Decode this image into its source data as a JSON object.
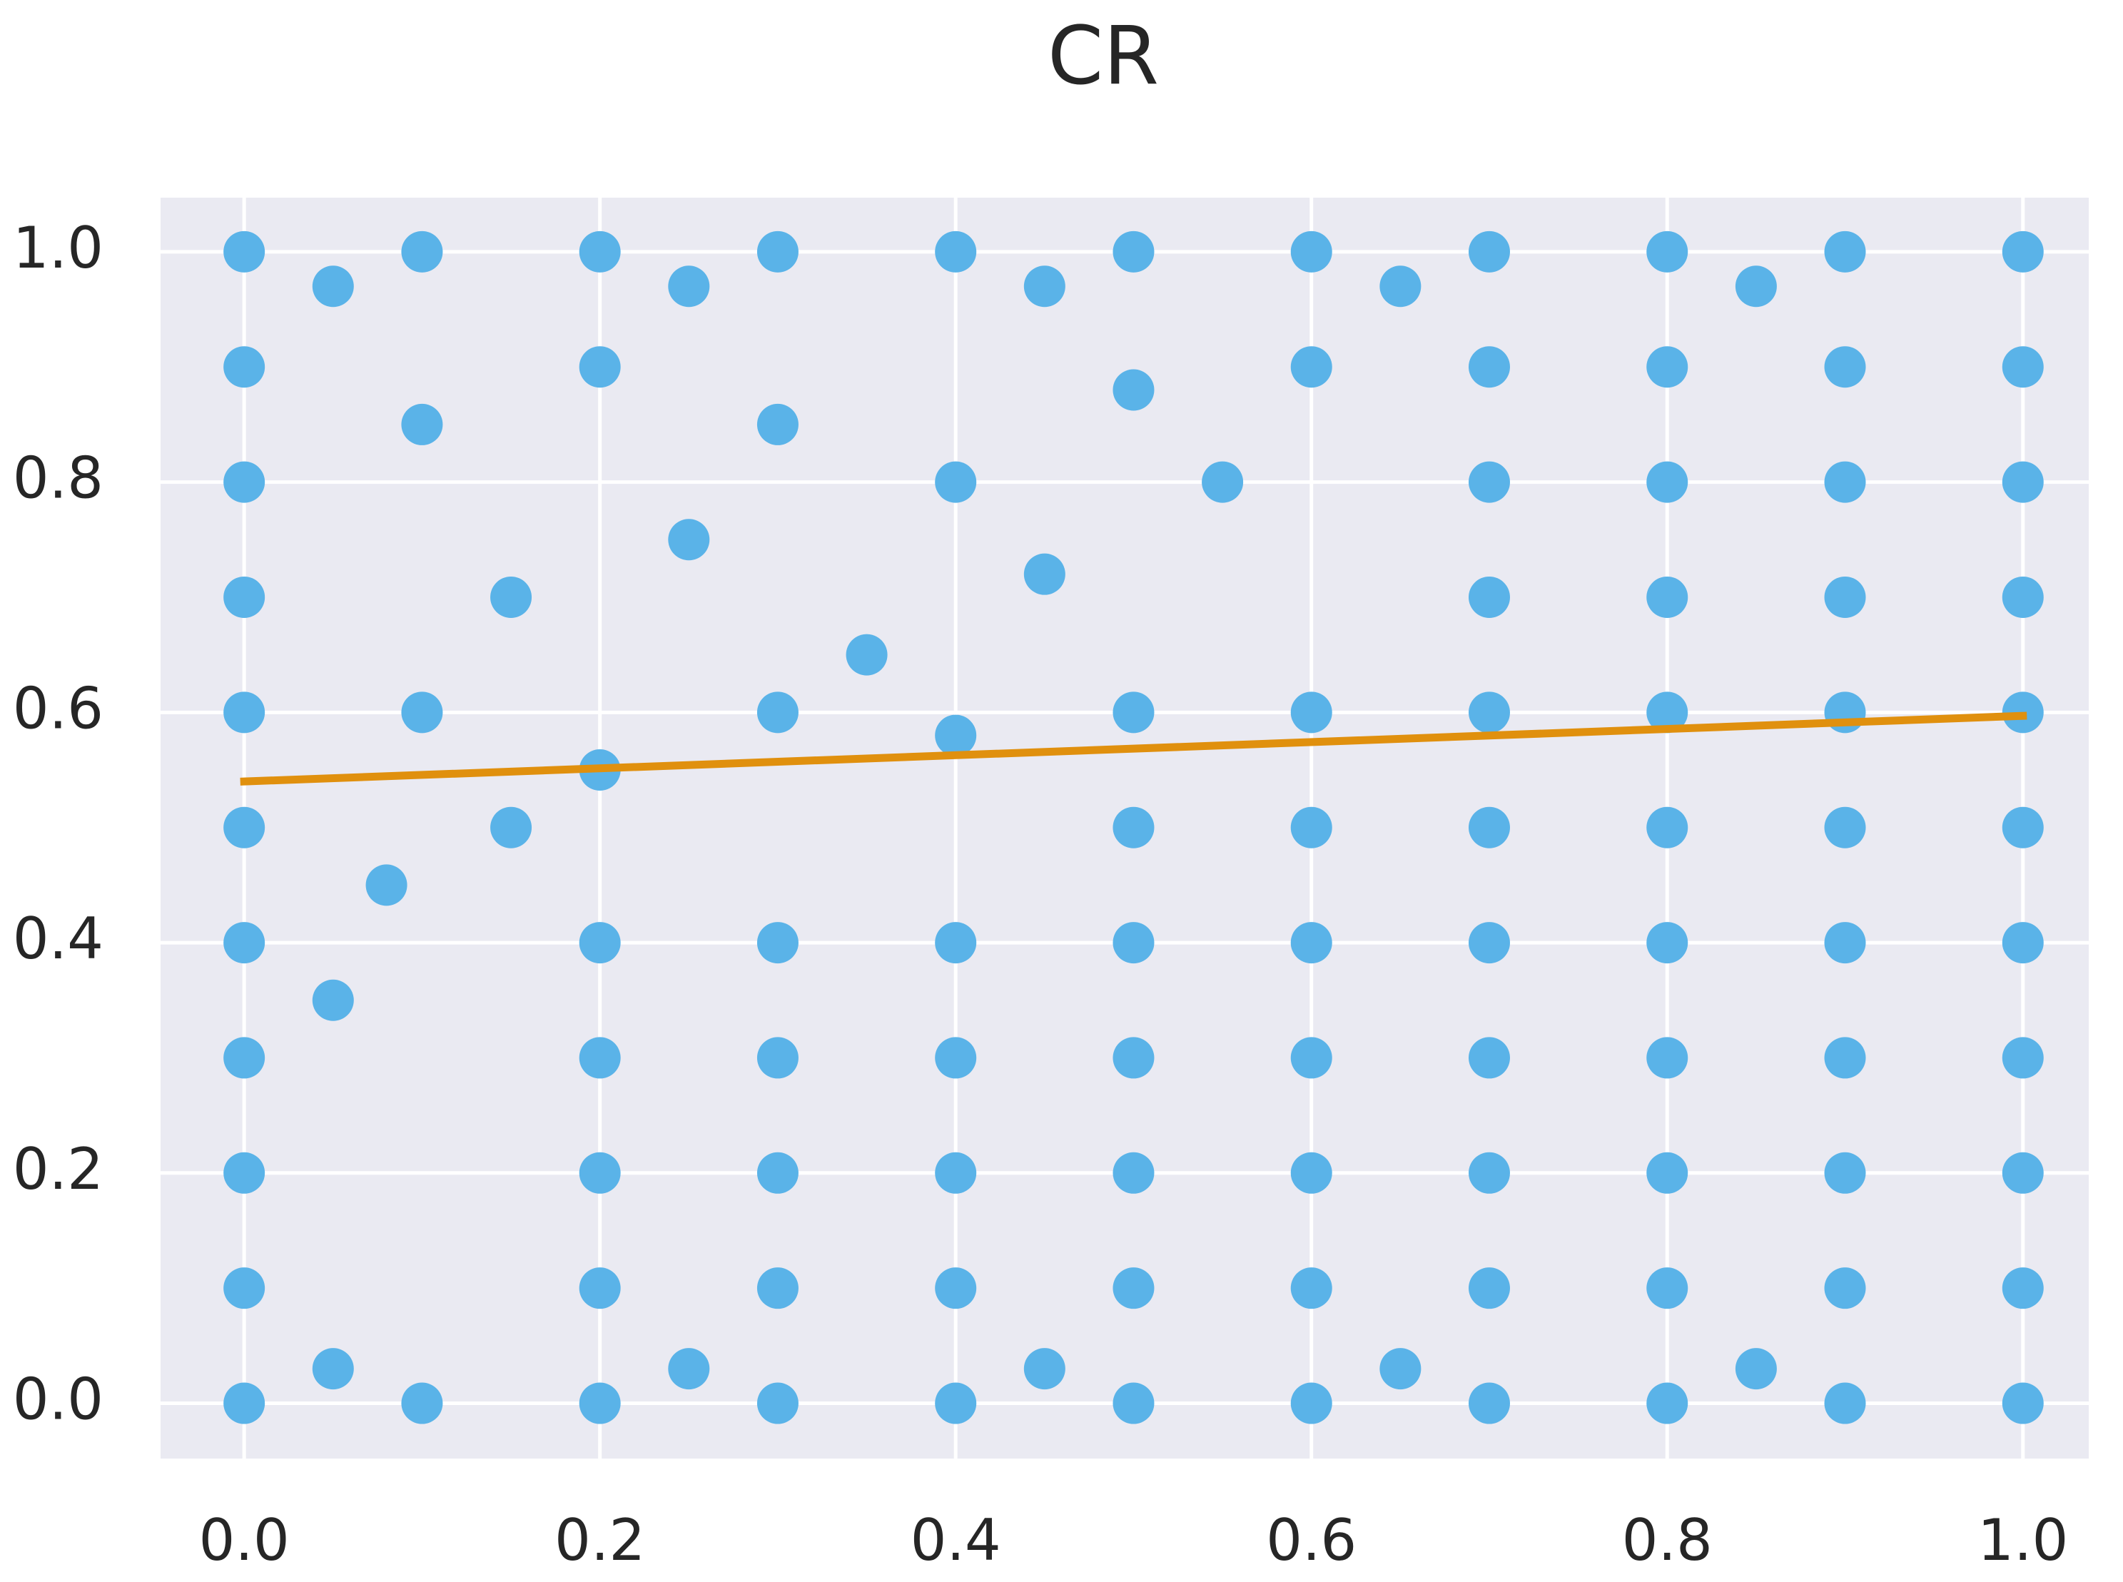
{
  "chart_data": {
    "type": "scatter",
    "title": "CR",
    "xlim": [
      -0.047,
      1.037
    ],
    "ylim": [
      -0.048,
      1.047
    ],
    "xticks": [
      {
        "value": 0,
        "label": "0.0"
      },
      {
        "value": 0.2,
        "label": "0.2"
      },
      {
        "value": 0.4,
        "label": "0.4"
      },
      {
        "value": 0.6,
        "label": "0.6"
      },
      {
        "value": 0.8,
        "label": "0.8"
      },
      {
        "value": 1,
        "label": "1.0"
      }
    ],
    "yticks": [
      {
        "value": 0,
        "label": "0.0"
      },
      {
        "value": 0.2,
        "label": "0.2"
      },
      {
        "value": 0.4,
        "label": "0.4"
      },
      {
        "value": 0.6,
        "label": "0.6"
      },
      {
        "value": 0.8,
        "label": "0.8"
      },
      {
        "value": 1,
        "label": "1.0"
      }
    ],
    "grid": true,
    "series": [
      {
        "type": "scatter",
        "color": "#5ab3e8",
        "x": [
          0,
          0,
          0,
          0,
          0,
          0,
          0,
          0,
          0,
          0,
          0,
          1,
          1,
          1,
          1,
          1,
          1,
          1,
          1,
          1,
          1,
          1,
          0.1,
          0.2,
          0.3,
          0.4,
          0.5,
          0.6,
          0.7,
          0.8,
          0.9,
          0.05,
          0.25,
          0.45,
          0.65,
          0.85,
          0.1,
          0.2,
          0.3,
          0.4,
          0.5,
          0.6,
          0.7,
          0.8,
          0.9,
          0.05,
          0.25,
          0.45,
          0.65,
          0.85,
          0.1,
          0.15,
          0.2,
          0.25,
          0.3,
          0.35,
          0.4,
          0.45,
          0.5,
          0.55,
          0.6,
          0.1,
          0.2,
          0.3,
          0.4,
          0.08,
          0.15,
          0.05,
          0.2,
          0.3,
          0.4,
          0.5,
          0.6,
          0.7,
          0.8,
          0.9,
          0.2,
          0.3,
          0.4,
          0.5,
          0.6,
          0.7,
          0.8,
          0.9,
          0.2,
          0.3,
          0.4,
          0.5,
          0.6,
          0.7,
          0.8,
          0.9,
          0.2,
          0.3,
          0.4,
          0.5,
          0.6,
          0.7,
          0.8,
          0.9,
          0.5,
          0.6,
          0.7,
          0.8,
          0.9,
          0.5,
          0.6,
          0.7,
          0.8,
          0.9,
          0.7,
          0.8,
          0.9,
          0.7,
          0.8,
          0.9,
          0.7,
          0.8,
          0.9
        ],
        "values": [
          0,
          0.1,
          0.2,
          0.3,
          0.4,
          0.5,
          0.6,
          0.7,
          0.8,
          0.9,
          1,
          0,
          0.1,
          0.2,
          0.3,
          0.4,
          0.5,
          0.6,
          0.7,
          0.8,
          0.9,
          1,
          1,
          1,
          1,
          1,
          1,
          1,
          1,
          1,
          1,
          0.97,
          0.97,
          0.97,
          0.97,
          0.97,
          0,
          0,
          0,
          0,
          0,
          0,
          0,
          0,
          0,
          0.03,
          0.03,
          0.03,
          0.03,
          0.03,
          0.85,
          0.7,
          0.9,
          0.75,
          0.85,
          0.65,
          0.8,
          0.72,
          0.88,
          0.8,
          0.9,
          0.6,
          0.55,
          0.6,
          0.58,
          0.45,
          0.5,
          0.35,
          0.1,
          0.1,
          0.1,
          0.1,
          0.1,
          0.1,
          0.1,
          0.1,
          0.2,
          0.2,
          0.2,
          0.2,
          0.2,
          0.2,
          0.2,
          0.2,
          0.3,
          0.3,
          0.3,
          0.3,
          0.3,
          0.3,
          0.3,
          0.3,
          0.4,
          0.4,
          0.4,
          0.4,
          0.4,
          0.4,
          0.4,
          0.4,
          0.5,
          0.5,
          0.5,
          0.5,
          0.5,
          0.6,
          0.6,
          0.6,
          0.6,
          0.6,
          0.7,
          0.7,
          0.7,
          0.8,
          0.8,
          0.8,
          0.9,
          0.9,
          0.9
        ]
      },
      {
        "type": "line",
        "color": "#e0900e",
        "x": [
          0,
          1
        ],
        "values": [
          0.54,
          0.597
        ]
      }
    ]
  }
}
